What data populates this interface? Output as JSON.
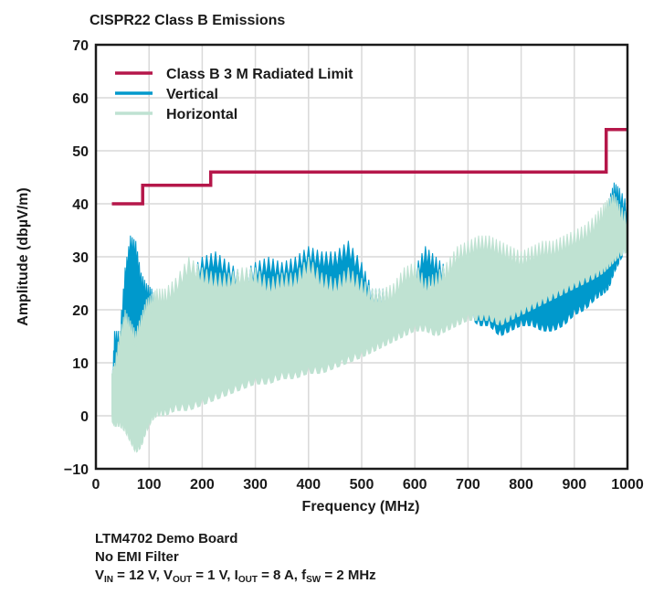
{
  "chart_data": {
    "type": "area",
    "title": "CISPR22 Class B Emissions",
    "xlabel": "Frequency (MHz)",
    "ylabel": "Amplitude (dbµV/m)",
    "xlim": [
      0,
      1000
    ],
    "ylim": [
      -10,
      70
    ],
    "xticks": [
      0,
      100,
      200,
      300,
      400,
      500,
      600,
      700,
      800,
      900,
      1000
    ],
    "yticks": [
      -10,
      0,
      10,
      20,
      30,
      40,
      50,
      60,
      70
    ],
    "grid": true,
    "legend_position": "top-left",
    "colors": {
      "limit": "#b5174a",
      "vertical": "#0099cc",
      "horizontal": "#bfe2d2",
      "grid": "#d9d9d9",
      "axis": "#1a1a1a"
    },
    "series": [
      {
        "name": "Class B 3 M Radiated Limit",
        "kind": "step",
        "x": [
          30,
          88,
          88,
          216,
          216,
          960,
          960,
          1000
        ],
        "y": [
          40,
          40,
          43.5,
          43.5,
          46,
          46,
          54,
          54
        ]
      },
      {
        "name": "Vertical",
        "kind": "band",
        "x": [
          30,
          35,
          45,
          55,
          65,
          75,
          85,
          95,
          105,
          115,
          130,
          150,
          175,
          200,
          225,
          250,
          275,
          300,
          325,
          350,
          375,
          400,
          425,
          450,
          475,
          500,
          520,
          540,
          560,
          580,
          600,
          620,
          640,
          660,
          680,
          700,
          720,
          740,
          760,
          780,
          800,
          820,
          840,
          860,
          880,
          900,
          920,
          940,
          955,
          965,
          975,
          985,
          1000
        ],
        "upper": [
          5,
          16,
          16,
          28,
          34,
          33,
          27,
          25,
          24,
          22,
          23,
          25,
          27,
          30,
          31,
          29,
          27,
          29,
          30,
          29,
          30,
          32,
          31,
          31,
          33,
          29,
          24,
          24,
          24,
          25,
          28,
          32,
          30,
          28,
          29,
          28,
          27,
          27,
          28,
          27,
          29,
          28,
          27,
          28,
          28,
          30,
          32,
          35,
          38,
          41,
          44,
          43,
          40
        ],
        "lower": [
          3,
          8,
          8,
          8,
          10,
          8,
          11,
          8,
          9,
          12,
          18,
          22,
          22,
          23,
          22,
          22,
          22,
          23,
          23,
          22,
          22,
          22,
          21,
          21,
          20,
          20,
          19,
          18,
          19,
          20,
          22,
          23,
          24,
          23,
          21,
          19,
          17,
          17,
          15,
          16,
          17,
          17,
          16,
          16,
          17,
          19,
          20,
          22,
          23,
          24,
          27,
          29,
          32
        ]
      },
      {
        "name": "Horizontal",
        "kind": "band",
        "x": [
          30,
          35,
          45,
          55,
          65,
          75,
          85,
          95,
          105,
          115,
          130,
          150,
          175,
          200,
          225,
          250,
          275,
          300,
          325,
          350,
          375,
          400,
          425,
          450,
          475,
          500,
          520,
          540,
          560,
          580,
          600,
          620,
          640,
          660,
          680,
          700,
          720,
          740,
          760,
          780,
          800,
          820,
          840,
          860,
          880,
          900,
          920,
          940,
          955,
          965,
          975,
          985,
          1000
        ],
        "upper": [
          8,
          10,
          16,
          20,
          18,
          16,
          19,
          22,
          23,
          24,
          24,
          26,
          30,
          28,
          27,
          27,
          28,
          28,
          26,
          27,
          27,
          30,
          27,
          26,
          28,
          26,
          24,
          24,
          25,
          28,
          29,
          26,
          27,
          29,
          32,
          33,
          34,
          34,
          33,
          32,
          31,
          32,
          33,
          33,
          34,
          35,
          36,
          38,
          40,
          41,
          42,
          40,
          38
        ],
        "lower": [
          -1,
          -2,
          -2,
          -3,
          -5,
          -7,
          -6,
          -3,
          -1,
          0,
          0,
          1,
          1,
          2,
          3,
          4,
          5,
          6,
          6,
          7,
          7,
          8,
          8,
          9,
          10,
          11,
          12,
          13,
          14,
          15,
          16,
          16,
          15,
          16,
          17,
          18,
          18,
          18,
          17,
          18,
          19,
          20,
          21,
          22,
          23,
          24,
          25,
          26,
          27,
          28,
          29,
          30,
          31
        ]
      }
    ]
  },
  "caption": {
    "line1": "LTM4702 Demo Board",
    "line2": "No EMI Filter",
    "line3_parts": [
      {
        "main": "V",
        "sub": "IN",
        "rest": " = 12 V, "
      },
      {
        "main": "V",
        "sub": "OUT",
        "rest": " = 1 V, "
      },
      {
        "main": "I",
        "sub": "OUT",
        "rest": " = 8 A, "
      },
      {
        "main": "f",
        "sub": "SW",
        "rest": " = 2 MHz"
      }
    ]
  }
}
